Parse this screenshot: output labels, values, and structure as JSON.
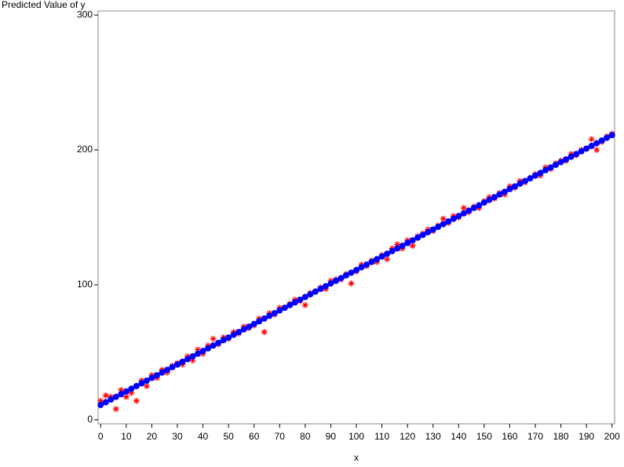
{
  "chart_data": {
    "type": "scatter",
    "title": "Predicted Value of y",
    "x_label": "x",
    "x": [
      0,
      2,
      4,
      6,
      8,
      10,
      12,
      14,
      16,
      18,
      20,
      22,
      24,
      26,
      28,
      30,
      32,
      34,
      36,
      38,
      40,
      42,
      44,
      46,
      48,
      50,
      52,
      54,
      56,
      58,
      60,
      62,
      64,
      66,
      68,
      70,
      72,
      74,
      76,
      78,
      80,
      82,
      84,
      86,
      88,
      90,
      92,
      94,
      96,
      98,
      100,
      102,
      104,
      106,
      108,
      110,
      112,
      114,
      116,
      118,
      120,
      122,
      124,
      126,
      128,
      130,
      132,
      134,
      136,
      138,
      140,
      142,
      144,
      146,
      148,
      150,
      152,
      154,
      156,
      158,
      160,
      162,
      164,
      166,
      168,
      170,
      172,
      174,
      176,
      178,
      180,
      182,
      184,
      186,
      188,
      190,
      192,
      194,
      196,
      198,
      200
    ],
    "series": [
      {
        "color": "#ff0000",
        "marker": "star",
        "values": [
          14,
          18,
          17,
          8,
          22,
          17,
          20,
          14,
          29,
          25,
          33,
          31,
          37,
          35,
          40,
          42,
          41,
          47,
          44,
          52,
          49,
          55,
          60,
          56,
          61,
          60,
          65,
          64,
          69,
          68,
          70,
          75,
          65,
          79,
          78,
          83,
          83,
          86,
          89,
          88,
          85,
          94,
          95,
          98,
          97,
          103,
          104,
          104,
          108,
          101,
          110,
          115,
          114,
          118,
          117,
          122,
          119,
          127,
          130,
          127,
          133,
          129,
          136,
          138,
          141,
          140,
          144,
          149,
          146,
          151,
          150,
          157,
          154,
          158,
          157,
          162,
          165,
          164,
          168,
          167,
          173,
          172,
          177,
          176,
          179,
          182,
          181,
          187,
          186,
          190,
          192,
          192,
          197,
          196,
          200,
          201,
          208,
          200,
          206,
          210,
          212
        ]
      },
      {
        "color": "#0000ff",
        "marker": "circle",
        "values": [
          11,
          13,
          15,
          17,
          19,
          21,
          23,
          25,
          27,
          29,
          31,
          33,
          35,
          37,
          39,
          41,
          43,
          45,
          47,
          49,
          51,
          53,
          55,
          57,
          59,
          61,
          63,
          65,
          67,
          69,
          71,
          73,
          75,
          77,
          79,
          81,
          83,
          85,
          87,
          89,
          91,
          93,
          95,
          97,
          99,
          101,
          103,
          105,
          107,
          109,
          111,
          113,
          115,
          117,
          119,
          121,
          123,
          125,
          127,
          129,
          131,
          133,
          135,
          137,
          139,
          141,
          143,
          145,
          147,
          149,
          151,
          153,
          155,
          157,
          159,
          161,
          163,
          165,
          167,
          169,
          171,
          173,
          175,
          177,
          179,
          181,
          183,
          185,
          187,
          189,
          191,
          193,
          195,
          197,
          199,
          201,
          203,
          205,
          207,
          209,
          211
        ]
      }
    ],
    "xlim": [
      -1,
      201
    ],
    "ylim": [
      -3,
      303
    ],
    "xticks": [
      0,
      10,
      20,
      30,
      40,
      50,
      60,
      70,
      80,
      90,
      100,
      110,
      120,
      130,
      140,
      150,
      160,
      170,
      180,
      190,
      200
    ],
    "yticks": [
      0,
      100,
      200,
      300
    ]
  }
}
